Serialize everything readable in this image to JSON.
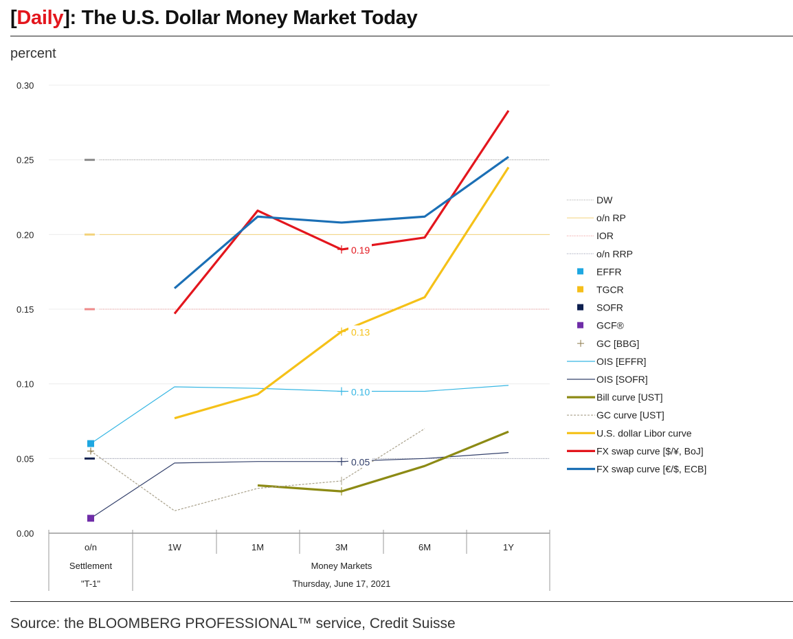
{
  "header": {
    "title_prefix_open": "[",
    "title_accent": "Daily",
    "title_rest": "]: The U.S. Dollar Money Market Today",
    "unit": "percent"
  },
  "footer": {
    "source": "Source: the BLOOMBERG PROFESSIONAL™ service, Credit Suisse"
  },
  "colors": {
    "accent": "#e3161d"
  },
  "chart_data": {
    "type": "line",
    "title": "[Daily]: The U.S. Dollar Money Market Today",
    "ylabel": "percent",
    "xlabel": "",
    "ylim": [
      0,
      0.3
    ],
    "yticks": [
      "0.00",
      "0.05",
      "0.10",
      "0.15",
      "0.20",
      "0.25",
      "0.30"
    ],
    "ytick_values": [
      0,
      0.05,
      0.1,
      0.15,
      0.2,
      0.25,
      0.3
    ],
    "categories": [
      "o/n",
      "1W",
      "1M",
      "3M",
      "6M",
      "1Y"
    ],
    "category_groups": [
      {
        "lines": [
          "Settlement",
          "\"T-1\""
        ],
        "span": [
          "o/n"
        ]
      },
      {
        "lines": [
          "Money Markets",
          "Thursday, June 17, 2021"
        ],
        "span": [
          "1W",
          "1M",
          "3M",
          "6M",
          "1Y"
        ]
      }
    ],
    "grid": true,
    "legend_position": "right",
    "reference_lines": [
      {
        "name": "DW",
        "value": 0.25,
        "color": "#9a9a9a",
        "style": "dotted"
      },
      {
        "name": "o/n RP",
        "value": 0.2,
        "color": "#f3d27a",
        "style": "solid-thin"
      },
      {
        "name": "IOR",
        "value": 0.15,
        "color": "#ee8a8a",
        "style": "dotted"
      },
      {
        "name": "o/n RRP",
        "value": 0.05,
        "color": "#8a8fa8",
        "style": "dotted"
      }
    ],
    "markers": [
      {
        "name": "EFFR",
        "category": "o/n",
        "value": 0.06,
        "color": "#1ea7e1",
        "shape": "square"
      },
      {
        "name": "TGCR",
        "category": "o/n",
        "value": 0.05,
        "color": "#f5be1a",
        "shape": "square"
      },
      {
        "name": "SOFR",
        "category": "o/n",
        "value": 0.05,
        "color": "#0d1f4f",
        "shape": "square"
      },
      {
        "name": "GCF®",
        "category": "o/n",
        "value": 0.01,
        "color": "#6f2da8",
        "shape": "square"
      },
      {
        "name": "GC [BBG]",
        "category": "o/n",
        "value": 0.055,
        "color": "#8c7a4a",
        "shape": "plus"
      }
    ],
    "series": [
      {
        "name": "OIS [EFFR]",
        "color": "#35b6e3",
        "width": "thin",
        "style": "solid",
        "values": [
          0.06,
          0.098,
          0.097,
          0.095,
          0.095,
          0.099
        ],
        "label_at": "3M",
        "label": "0.10"
      },
      {
        "name": "OIS [SOFR]",
        "color": "#33406b",
        "width": "thin",
        "style": "solid",
        "values": [
          0.01,
          0.047,
          0.048,
          0.048,
          0.05,
          0.054
        ],
        "label_at": "3M",
        "label": "0.05"
      },
      {
        "name": "Bill curve [UST]",
        "color": "#8c8a14",
        "width": "thick",
        "style": "solid",
        "values": [
          null,
          null,
          0.032,
          0.028,
          0.045,
          0.068
        ]
      },
      {
        "name": "GC curve [UST]",
        "color": "#a8a08a",
        "width": "thin",
        "style": "dashed",
        "values": [
          0.055,
          0.015,
          0.03,
          0.035,
          0.07,
          null
        ]
      },
      {
        "name": "U.S. dollar Libor curve",
        "color": "#f5c118",
        "width": "thick",
        "style": "solid",
        "values": [
          null,
          0.077,
          0.093,
          0.135,
          0.158,
          0.245
        ],
        "label_at": "3M",
        "label": "0.13"
      },
      {
        "name": "FX swap curve [$/¥, BoJ]",
        "color": "#e3161d",
        "width": "thick",
        "style": "solid",
        "values": [
          null,
          0.147,
          0.216,
          0.19,
          0.198,
          0.283
        ],
        "label_at": "3M",
        "label": "0.19"
      },
      {
        "name": "FX swap curve [€/$, ECB]",
        "color": "#1b6fb5",
        "width": "thick",
        "style": "solid",
        "values": [
          null,
          0.164,
          0.212,
          0.208,
          0.212,
          0.252
        ]
      }
    ],
    "legend": [
      {
        "label": "DW",
        "kind": "ref",
        "ref": 0
      },
      {
        "label": "o/n RP",
        "kind": "ref",
        "ref": 1
      },
      {
        "label": "IOR",
        "kind": "ref",
        "ref": 2
      },
      {
        "label": "o/n RRP",
        "kind": "ref",
        "ref": 3
      },
      {
        "label": "EFFR",
        "kind": "marker",
        "ref": 0
      },
      {
        "label": "TGCR",
        "kind": "marker",
        "ref": 1
      },
      {
        "label": "SOFR",
        "kind": "marker",
        "ref": 2
      },
      {
        "label": "GCF®",
        "kind": "marker",
        "ref": 3
      },
      {
        "label": "GC [BBG]",
        "kind": "marker",
        "ref": 4
      },
      {
        "label": "OIS [EFFR]",
        "kind": "series",
        "ref": 0
      },
      {
        "label": "OIS [SOFR]",
        "kind": "series",
        "ref": 1
      },
      {
        "label": "Bill curve [UST]",
        "kind": "series",
        "ref": 2
      },
      {
        "label": "GC curve [UST]",
        "kind": "series",
        "ref": 3
      },
      {
        "label": "U.S. dollar Libor curve",
        "kind": "series",
        "ref": 4
      },
      {
        "label": "FX swap curve [$/¥, BoJ]",
        "kind": "series",
        "ref": 5
      },
      {
        "label": "FX swap curve [€/$, ECB]",
        "kind": "series",
        "ref": 6
      }
    ]
  }
}
